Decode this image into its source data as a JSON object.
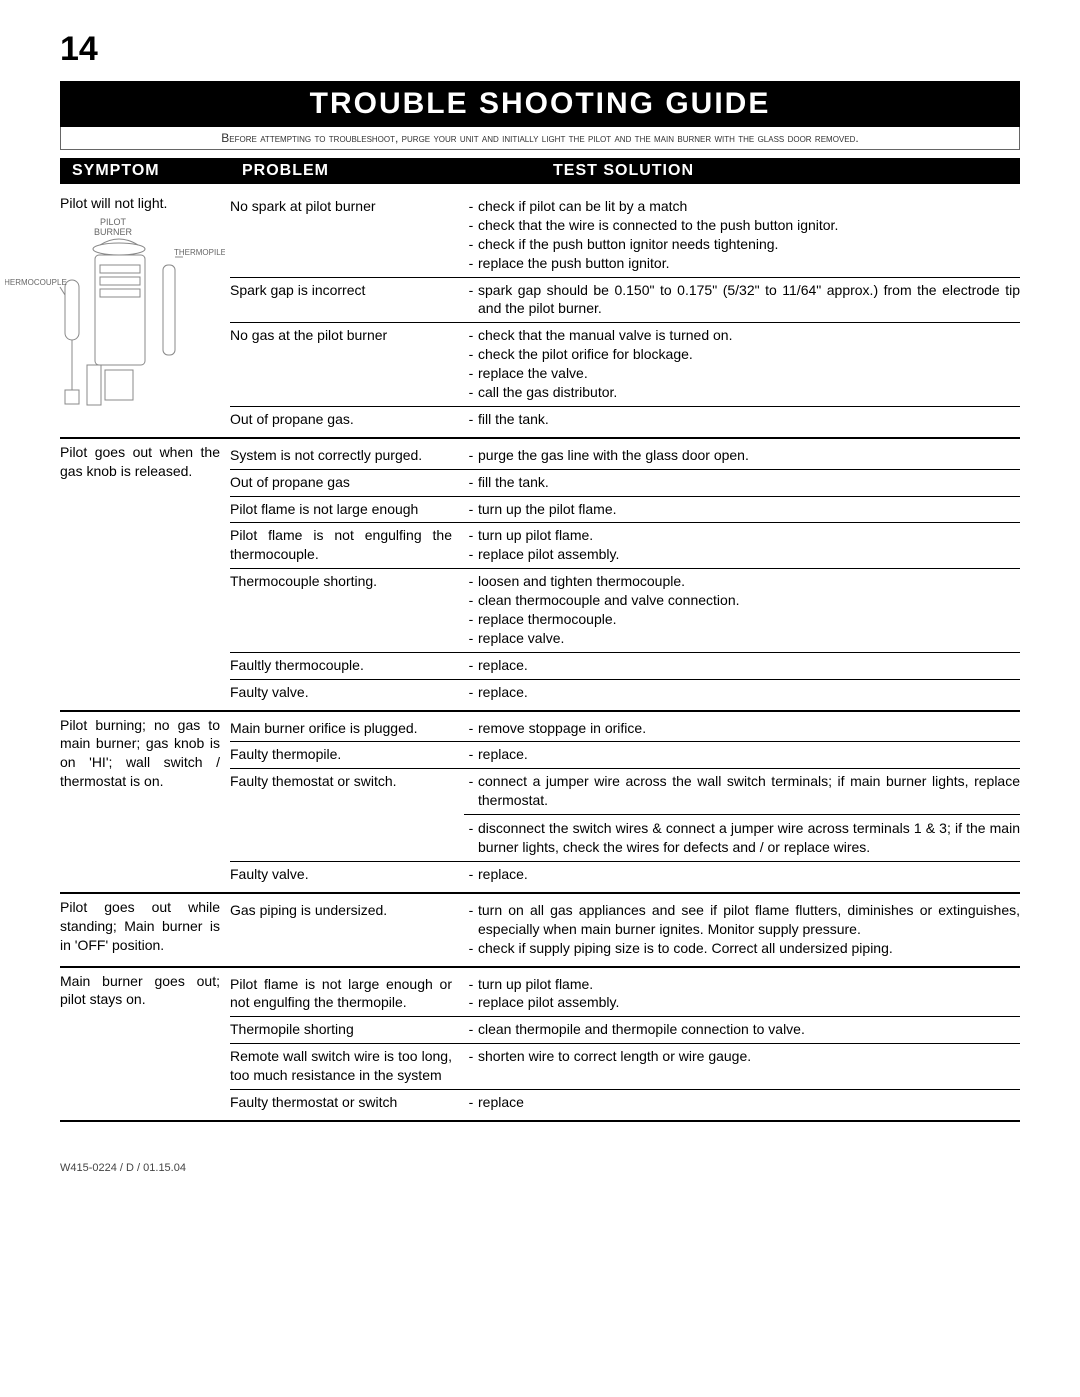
{
  "page_number": "14",
  "banner_title": "TROUBLE SHOOTING GUIDE",
  "notice_text": "Before attempting to troubleshoot, purge your unit and initially light the pilot and the main burner with the glass door removed.",
  "headers": {
    "symptom": "SYMPTOM",
    "problem": "PROBLEM",
    "solution": "TEST SOLUTION"
  },
  "diagram_labels": {
    "pilot_burner": "PILOT\nBURNER",
    "thermopile": "THERMOPILE",
    "thermocouple": "THERMOCOUPLE"
  },
  "sections": [
    {
      "symptom": "Pilot will not light.",
      "has_diagram_below": true,
      "problems": [
        {
          "problem": "No spark at pilot burner",
          "solutions": [
            "check if pilot can be lit by a match",
            "check that the wire is connected to the push button ignitor.",
            "check if the push button ignitor needs tightening.",
            "replace the push button ignitor."
          ]
        },
        {
          "problem": "Spark gap is incorrect",
          "solutions": [
            "spark gap should be 0.150\" to 0.175\" (5/32\" to 11/64\" approx.) from the electrode tip and the pilot burner."
          ]
        },
        {
          "problem": "No gas at the pilot burner",
          "solutions": [
            "check that the manual valve is turned on.",
            "check the pilot orifice for blockage.",
            "replace the valve.",
            "call the gas distributor."
          ]
        },
        {
          "problem": "Out of propane gas.",
          "solutions": [
            "fill the tank."
          ]
        }
      ]
    },
    {
      "symptom": "Pilot goes out when the gas knob is released.",
      "problems": [
        {
          "problem": "System is not correctly purged.",
          "solutions": [
            "purge the gas line with the glass door open."
          ]
        },
        {
          "problem": "Out of propane gas",
          "solutions": [
            "fill the tank."
          ]
        },
        {
          "problem": "Pilot flame is not large enough",
          "solutions": [
            "turn up the pilot flame."
          ]
        },
        {
          "problem": "Pilot flame is not engulfing the thermocouple.",
          "solutions": [
            "turn up pilot flame.",
            "replace pilot assembly."
          ]
        },
        {
          "problem": "Thermocouple shorting.",
          "solutions": [
            "loosen and tighten thermocouple.",
            "clean thermocouple and valve connection.",
            "replace thermocouple.",
            "replace valve."
          ]
        },
        {
          "problem": "Faultly thermocouple.",
          "solutions": [
            "replace."
          ]
        },
        {
          "problem": "Faulty valve.",
          "solutions": [
            "replace."
          ]
        }
      ]
    },
    {
      "symptom": "Pilot burning; no gas to main burner; gas knob is on 'HI'; wall switch / thermostat is on.",
      "problems": [
        {
          "problem": "Main burner orifice is plugged.",
          "solutions": [
            "remove stoppage in orifice."
          ]
        },
        {
          "problem": "Faulty thermopile.",
          "solutions": [
            "replace."
          ]
        },
        {
          "problem": "Faulty themostat or switch.",
          "solutions": [
            "connect a jumper wire across the wall switch terminals; if main burner lights, replace thermostat."
          ],
          "sub_solutions": [
            "disconnect the switch wires & connect a jumper wire across terminals 1 & 3; if the main burner lights, check the wires for defects and / or replace wires."
          ]
        },
        {
          "problem": "Faulty valve.",
          "solutions": [
            "replace."
          ]
        }
      ]
    },
    {
      "symptom": "Pilot goes out while standing; Main burner is in 'OFF' position.",
      "problems": [
        {
          "problem": "Gas piping is undersized.",
          "solutions": [
            "turn on all gas appliances and see if pilot flame flutters, diminishes or extinguishes, especially when main burner ignites. Monitor supply pressure.",
            "check if supply piping size is to code. Correct all undersized piping."
          ]
        }
      ]
    },
    {
      "symptom": "Main burner goes out; pilot stays on.",
      "problems": [
        {
          "problem": "Pilot flame is not large enough or not engulfing the thermopile.",
          "solutions": [
            "turn up pilot flame.",
            "replace pilot assembly."
          ]
        },
        {
          "problem": "Thermopile shorting",
          "solutions": [
            "clean thermopile and thermopile connection to valve."
          ]
        },
        {
          "problem": "Remote wall switch wire is too long, too much resistance in the system",
          "solutions": [
            "shorten wire to correct length or wire gauge."
          ]
        },
        {
          "problem": "Faulty thermostat or switch",
          "solutions": [
            "replace"
          ]
        }
      ]
    }
  ],
  "footer_code": "W415-0224 / D / 01.15.04",
  "colors": {
    "banner_bg": "#000000",
    "banner_fg": "#ffffff",
    "rule": "#000000"
  }
}
